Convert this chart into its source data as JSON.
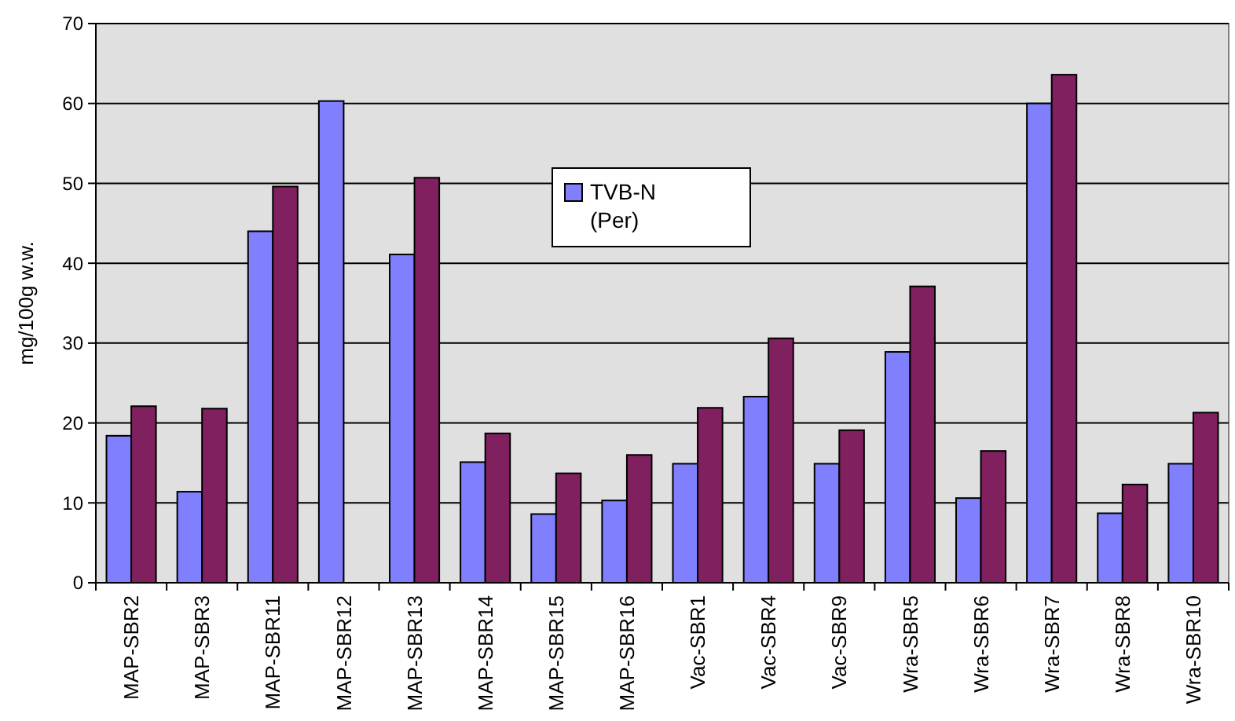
{
  "chart_data": {
    "type": "bar",
    "ylabel": "mg/100g w.w.",
    "categories": [
      "MAP-SBR2",
      "MAP-SBR3",
      "MAP-SBR11",
      "MAP-SBR12",
      "MAP-SBR13",
      "MAP-SBR14",
      "MAP-SBR15",
      "MAP-SBR16",
      "Vac-SBR1",
      "Vac-SBR4",
      "Vac-SBR9",
      "Wra-SBR5",
      "Wra-SBR6",
      "Wra-SBR7",
      "Wra-SBR8",
      "Wra-SBR10"
    ],
    "series": [
      {
        "name": "TVB-N (Per)",
        "color": "#8080ff",
        "values": [
          18.4,
          11.4,
          44,
          60.3,
          41.1,
          15.1,
          8.6,
          10.3,
          14.9,
          23.3,
          14.9,
          28.9,
          10.6,
          60,
          8.7,
          14.9
        ]
      },
      {
        "color": "#80205f",
        "values": [
          22.1,
          21.8,
          49.6,
          null,
          50.7,
          18.7,
          13.7,
          16,
          21.9,
          30.6,
          19.1,
          37.1,
          16.5,
          63.6,
          12.3,
          21.3
        ]
      }
    ],
    "ylim": [
      0,
      70
    ],
    "yticks": [
      0,
      10,
      20,
      30,
      40,
      50,
      60,
      70
    ],
    "grid": "y",
    "legend": "top"
  }
}
